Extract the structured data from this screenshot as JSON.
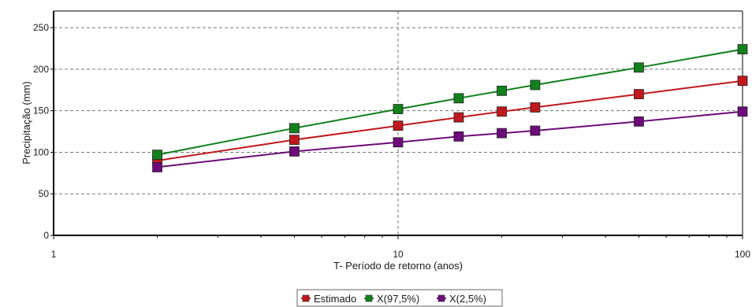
{
  "chart_data": {
    "type": "line",
    "xlabel": "T- Período de retorno (anos)",
    "ylabel": "Precipitação (mm)",
    "x_scale": "log",
    "xlim": [
      1,
      100
    ],
    "ylim": [
      0,
      270
    ],
    "x_ticks": [
      1,
      10,
      100
    ],
    "x_tick_labels": [
      "1",
      "10",
      "100"
    ],
    "y_ticks": [
      0,
      50,
      100,
      150,
      200,
      250
    ],
    "y_tick_labels": [
      "0",
      "50",
      "100",
      "150",
      "200",
      "250"
    ],
    "grid": true,
    "legend_position": "bottom",
    "x": [
      2,
      5,
      10,
      15,
      20,
      25,
      50,
      100
    ],
    "series": [
      {
        "name": "Estimado",
        "color": "#c0181d",
        "values": [
          90,
          115,
          132,
          142,
          149,
          154,
          170,
          186
        ]
      },
      {
        "name": "X(97,5%)",
        "color": "#12801c",
        "values": [
          97,
          129,
          152,
          165,
          174,
          181,
          202,
          224
        ]
      },
      {
        "name": "X(2,5%)",
        "color": "#6d0b7a",
        "values": [
          82,
          101,
          112,
          119,
          123,
          126,
          137,
          149
        ]
      }
    ]
  }
}
